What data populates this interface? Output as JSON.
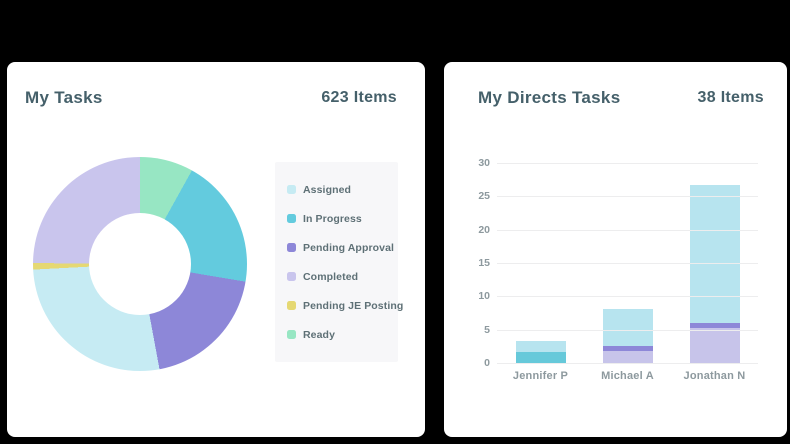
{
  "frame": {
    "background": "#000000",
    "card_background": "#ffffff"
  },
  "palette": {
    "title_text": "#45606a",
    "legend_text": "#5e7076",
    "axis_text": "#8d999e",
    "legend_box_bg": "#f7f7f9",
    "gridline": "#ededee",
    "assigned": "#c6ebf3",
    "assigned_bar": "#b7e4ef",
    "in_progress": "#63cbde",
    "pending_approval": "#8d87d8",
    "completed": "#c9c5ed",
    "pending_je_posting": "#e5d873",
    "ready": "#97e6c3"
  },
  "left_card": {
    "title": "My Tasks",
    "count": "623 Items",
    "legend": [
      {
        "label": "Assigned",
        "color": "#c6ebf3"
      },
      {
        "label": "In Progress",
        "color": "#63cbde"
      },
      {
        "label": "Pending Approval",
        "color": "#8d87d8"
      },
      {
        "label": "Completed",
        "color": "#c9c5ed"
      },
      {
        "label": "Pending JE Posting",
        "color": "#e5d873"
      },
      {
        "label": "Ready",
        "color": "#97e6c3"
      }
    ]
  },
  "right_card": {
    "title": "My Directs Tasks",
    "count": "38 Items",
    "y_ticks": [
      "30",
      "25",
      "20",
      "15",
      "10",
      "5",
      "0"
    ]
  },
  "chart_data": [
    {
      "type": "pie",
      "subtype": "donut",
      "title": "My Tasks",
      "total_items": 623,
      "start_at_top_clockwise": true,
      "segments": [
        {
          "label": "Ready",
          "value": 50,
          "pct": 8.1,
          "start_deg": 0,
          "end_deg": 29,
          "color": "#97e6c3"
        },
        {
          "label": "In Progress",
          "value": 122,
          "pct": 19.6,
          "start_deg": 29,
          "end_deg": 99.5,
          "color": "#63cbde"
        },
        {
          "label": "Pending Approval",
          "value": 121,
          "pct": 19.4,
          "start_deg": 99.5,
          "end_deg": 169.5,
          "color": "#8d87d8"
        },
        {
          "label": "Assigned",
          "value": 169,
          "pct": 27.1,
          "start_deg": 169.5,
          "end_deg": 267,
          "color": "#c6ebf3"
        },
        {
          "label": "Pending JE Posting",
          "value": 6,
          "pct": 1.0,
          "start_deg": 267,
          "end_deg": 270.5,
          "color": "#e5d873"
        },
        {
          "label": "Completed",
          "value": 155,
          "pct": 24.9,
          "start_deg": 270.5,
          "end_deg": 360,
          "color": "#c9c5ed"
        }
      ],
      "legend_position": "right"
    },
    {
      "type": "bar",
      "stacked": true,
      "title": "My Directs Tasks",
      "total_items": 38,
      "categories": [
        "Jennifer P",
        "Michael A",
        "Jonathan N"
      ],
      "series": [
        {
          "name": "Completed",
          "color": "#c7c4ea",
          "values": [
            0,
            1.8,
            5.2
          ]
        },
        {
          "name": "Pending Approval",
          "color": "#8d87d8",
          "values": [
            0,
            0.7,
            0.8
          ]
        },
        {
          "name": "In Progress",
          "color": "#66c9da",
          "values": [
            1.6,
            0,
            0
          ]
        },
        {
          "name": "Assigned",
          "color": "#b7e4ef",
          "values": [
            1.7,
            5.6,
            20.7
          ]
        }
      ],
      "totals": [
        3.3,
        8.1,
        26.7
      ],
      "xlabel": "",
      "ylabel": "",
      "ylim": [
        0,
        30
      ],
      "yticks": [
        0,
        5,
        10,
        15,
        20,
        25,
        30
      ],
      "grid": true,
      "legend": false
    }
  ]
}
